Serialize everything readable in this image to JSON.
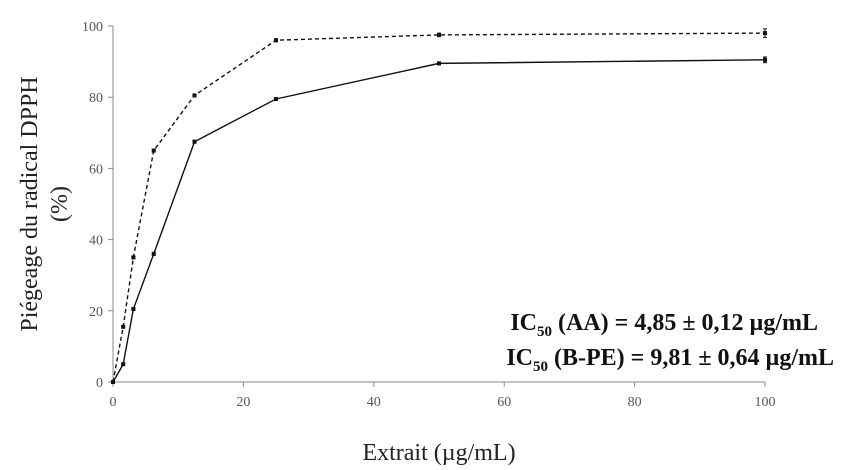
{
  "chart_data": {
    "type": "line",
    "title": "",
    "xlabel": "Extrait (µg/mL)",
    "ylabel_line1": "Piégeage du radical DPPH",
    "ylabel_line2": "(%)",
    "xlim": [
      0,
      100
    ],
    "ylim": [
      0,
      100
    ],
    "xticks": [
      0,
      20,
      40,
      60,
      80,
      100
    ],
    "yticks": [
      0,
      20,
      40,
      60,
      80,
      100
    ],
    "grid": false,
    "legend": "none",
    "series": [
      {
        "style": "dashed",
        "color": "#111111",
        "x": [
          0,
          1.5625,
          3.125,
          6.25,
          12.5,
          25,
          50,
          100
        ],
        "y": [
          0,
          15.5,
          35,
          65,
          80.5,
          96,
          97.5,
          98
        ],
        "err": [
          0,
          0.3,
          0.3,
          0.4,
          0.4,
          0.4,
          0.5,
          1.2
        ]
      },
      {
        "style": "solid",
        "color": "#111111",
        "x": [
          0,
          1.5625,
          3.125,
          6.25,
          12.5,
          25,
          50,
          100
        ],
        "y": [
          0,
          5,
          20.5,
          36,
          67.5,
          79.5,
          89.5,
          90.5
        ],
        "err": [
          0,
          0.3,
          0.3,
          0.4,
          0.4,
          0.4,
          0.4,
          0.8
        ]
      }
    ],
    "annotations": [
      {
        "prefix": "IC",
        "sub": "50",
        "suffix": " (AA) = 4,85 ± 0,12 µg/mL"
      },
      {
        "prefix": "IC",
        "sub": "50",
        "suffix": " (B-PE) = 9,81 ± 0,64 µg/mL"
      }
    ]
  }
}
